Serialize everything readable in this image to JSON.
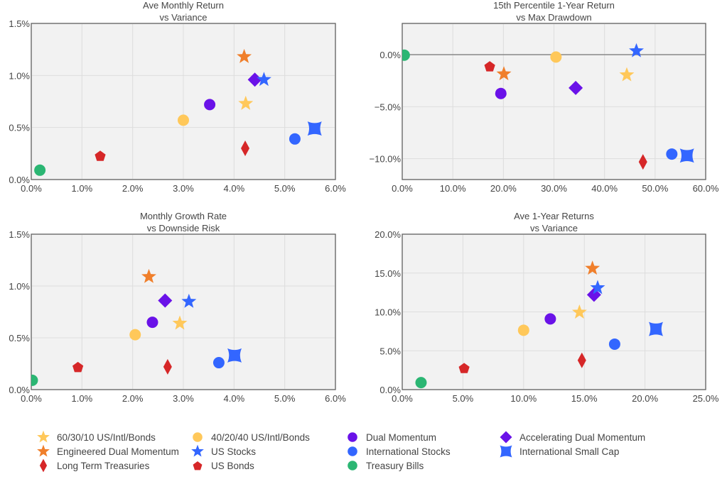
{
  "colors": {
    "yellow": "#FFC85A",
    "orange": "#F07F2B",
    "red": "#D62728",
    "purple": "#6A12E8",
    "blue": "#3366FF",
    "green": "#2BB673",
    "text": "#444444",
    "plot_bg": "#F2F2F2",
    "grid": "#DDDDDD"
  },
  "series": [
    {
      "key": "s6030",
      "name": "60/30/10 US/Intl/Bonds",
      "marker": "star",
      "color": "#FFC85A"
    },
    {
      "key": "edm",
      "name": "Engineered Dual Momentum",
      "marker": "star",
      "color": "#F07F2B"
    },
    {
      "key": "ltt",
      "name": "Long Term Treasuries",
      "marker": "thin-diamond",
      "color": "#D62728"
    },
    {
      "key": "s4020",
      "name": "40/20/40 US/Intl/Bonds",
      "marker": "circle",
      "color": "#FFC85A"
    },
    {
      "key": "uss",
      "name": "US Stocks",
      "marker": "star",
      "color": "#3366FF"
    },
    {
      "key": "usb",
      "name": "US Bonds",
      "marker": "pentagon",
      "color": "#D62728"
    },
    {
      "key": "dm",
      "name": "Dual Momentum",
      "marker": "circle",
      "color": "#6A12E8"
    },
    {
      "key": "intl",
      "name": "International Stocks",
      "marker": "circle",
      "color": "#3366FF"
    },
    {
      "key": "tb",
      "name": "Treasury Bills",
      "marker": "circle",
      "color": "#2BB673"
    },
    {
      "key": "adm",
      "name": "Accelerating Dual Momentum",
      "marker": "diamond",
      "color": "#6A12E8"
    },
    {
      "key": "isc",
      "name": "International Small Cap",
      "marker": "square-star",
      "color": "#3366FF"
    }
  ],
  "legend": {
    "placement": "bottom",
    "columns": [
      [
        "s6030",
        "edm",
        "ltt"
      ],
      [
        "s4020",
        "uss",
        "usb"
      ],
      [
        "dm",
        "intl",
        "tb"
      ],
      [
        "adm",
        "isc"
      ]
    ]
  },
  "chart_data": [
    {
      "type": "scatter",
      "title": "Ave Monthly Return",
      "subtitle": "vs Variance",
      "xlabel": "",
      "ylabel": "",
      "xlim": [
        0,
        6
      ],
      "ylim": [
        0,
        1.5
      ],
      "xticks": [
        0,
        1,
        2,
        3,
        4,
        5,
        6
      ],
      "yticks": [
        0,
        0.5,
        1.0,
        1.5
      ],
      "xtick_labels": [
        "0.0%",
        "1.0%",
        "2.0%",
        "3.0%",
        "4.0%",
        "5.0%",
        "6.0%"
      ],
      "ytick_labels": [
        "0.0%",
        "0.5%",
        "1.0%",
        "1.5%"
      ],
      "grid": true,
      "zero_line": false,
      "points": [
        {
          "series": "tb",
          "x": 0.17,
          "y": 0.09
        },
        {
          "series": "usb",
          "x": 1.36,
          "y": 0.23
        },
        {
          "series": "s4020",
          "x": 3.0,
          "y": 0.57
        },
        {
          "series": "dm",
          "x": 3.52,
          "y": 0.72
        },
        {
          "series": "ltt",
          "x": 4.22,
          "y": 0.3
        },
        {
          "series": "s6030",
          "x": 4.23,
          "y": 0.73
        },
        {
          "series": "edm",
          "x": 4.2,
          "y": 1.18
        },
        {
          "series": "adm",
          "x": 4.41,
          "y": 0.96
        },
        {
          "series": "uss",
          "x": 4.59,
          "y": 0.96
        },
        {
          "series": "intl",
          "x": 5.2,
          "y": 0.39
        },
        {
          "series": "isc",
          "x": 5.59,
          "y": 0.49
        }
      ]
    },
    {
      "type": "scatter",
      "title": "15th Percentile 1-Year Return",
      "subtitle": "vs Max Drawdown",
      "xlabel": "",
      "ylabel": "",
      "xlim": [
        0,
        60
      ],
      "ylim": [
        -12,
        3
      ],
      "xticks": [
        0,
        10,
        20,
        30,
        40,
        50,
        60
      ],
      "yticks": [
        -10,
        -5,
        0
      ],
      "xtick_labels": [
        "0.0%",
        "10.0%",
        "20.0%",
        "30.0%",
        "40.0%",
        "50.0%",
        "60.0%"
      ],
      "ytick_labels": [
        "−10.0%",
        "−5.0%",
        "0.0%"
      ],
      "grid": true,
      "zero_line": true,
      "points": [
        {
          "series": "tb",
          "x": 0.4,
          "y": -0.05
        },
        {
          "series": "usb",
          "x": 17.3,
          "y": -1.1
        },
        {
          "series": "edm",
          "x": 20.1,
          "y": -1.86
        },
        {
          "series": "dm",
          "x": 19.5,
          "y": -3.73
        },
        {
          "series": "s4020",
          "x": 30.4,
          "y": -0.23
        },
        {
          "series": "adm",
          "x": 34.3,
          "y": -3.2
        },
        {
          "series": "s6030",
          "x": 44.4,
          "y": -1.95
        },
        {
          "series": "uss",
          "x": 46.3,
          "y": 0.36
        },
        {
          "series": "ltt",
          "x": 47.6,
          "y": -10.3
        },
        {
          "series": "intl",
          "x": 53.3,
          "y": -9.55
        },
        {
          "series": "isc",
          "x": 56.3,
          "y": -9.7
        }
      ]
    },
    {
      "type": "scatter",
      "title": "Monthly Growth Rate",
      "subtitle": "vs Downside Risk",
      "xlabel": "",
      "ylabel": "",
      "xlim": [
        0,
        6
      ],
      "ylim": [
        0,
        1.5
      ],
      "xticks": [
        0,
        1,
        2,
        3,
        4,
        5,
        6
      ],
      "yticks": [
        0,
        0.5,
        1.0,
        1.5
      ],
      "xtick_labels": [
        "0.0%",
        "1.0%",
        "2.0%",
        "3.0%",
        "4.0%",
        "5.0%",
        "6.0%"
      ],
      "ytick_labels": [
        "0.0%",
        "0.5%",
        "1.0%",
        "1.5%"
      ],
      "grid": true,
      "zero_line": false,
      "points": [
        {
          "series": "tb",
          "x": 0.02,
          "y": 0.09
        },
        {
          "series": "usb",
          "x": 0.92,
          "y": 0.22
        },
        {
          "series": "s4020",
          "x": 2.05,
          "y": 0.53
        },
        {
          "series": "edm",
          "x": 2.32,
          "y": 1.09
        },
        {
          "series": "dm",
          "x": 2.39,
          "y": 0.65
        },
        {
          "series": "adm",
          "x": 2.64,
          "y": 0.86
        },
        {
          "series": "ltt",
          "x": 2.69,
          "y": 0.22
        },
        {
          "series": "s6030",
          "x": 2.93,
          "y": 0.64
        },
        {
          "series": "uss",
          "x": 3.11,
          "y": 0.85
        },
        {
          "series": "intl",
          "x": 3.7,
          "y": 0.26
        },
        {
          "series": "isc",
          "x": 4.01,
          "y": 0.33
        }
      ]
    },
    {
      "type": "scatter",
      "title": "Ave 1-Year Returns",
      "subtitle": "vs Variance",
      "xlabel": "",
      "ylabel": "",
      "xlim": [
        0,
        25
      ],
      "ylim": [
        0,
        20
      ],
      "xticks": [
        0,
        5,
        10,
        15,
        20,
        25
      ],
      "yticks": [
        0,
        5,
        10,
        15,
        20
      ],
      "xtick_labels": [
        "0.0%",
        "5.0%",
        "10.0%",
        "15.0%",
        "20.0%",
        "25.0%"
      ],
      "ytick_labels": [
        "0.0%",
        "5.0%",
        "10.0%",
        "15.0%",
        "20.0%"
      ],
      "grid": true,
      "zero_line": false,
      "points": [
        {
          "series": "tb",
          "x": 1.55,
          "y": 0.9
        },
        {
          "series": "usb",
          "x": 5.1,
          "y": 2.8
        },
        {
          "series": "s4020",
          "x": 10.0,
          "y": 7.64
        },
        {
          "series": "dm",
          "x": 12.2,
          "y": 9.1
        },
        {
          "series": "s6030",
          "x": 14.6,
          "y": 9.95
        },
        {
          "series": "ltt",
          "x": 14.8,
          "y": 3.77
        },
        {
          "series": "edm",
          "x": 15.67,
          "y": 15.6
        },
        {
          "series": "adm",
          "x": 15.8,
          "y": 12.2
        },
        {
          "series": "uss",
          "x": 16.1,
          "y": 13.1
        },
        {
          "series": "intl",
          "x": 17.5,
          "y": 5.85
        },
        {
          "series": "isc",
          "x": 20.9,
          "y": 7.8
        }
      ]
    }
  ]
}
